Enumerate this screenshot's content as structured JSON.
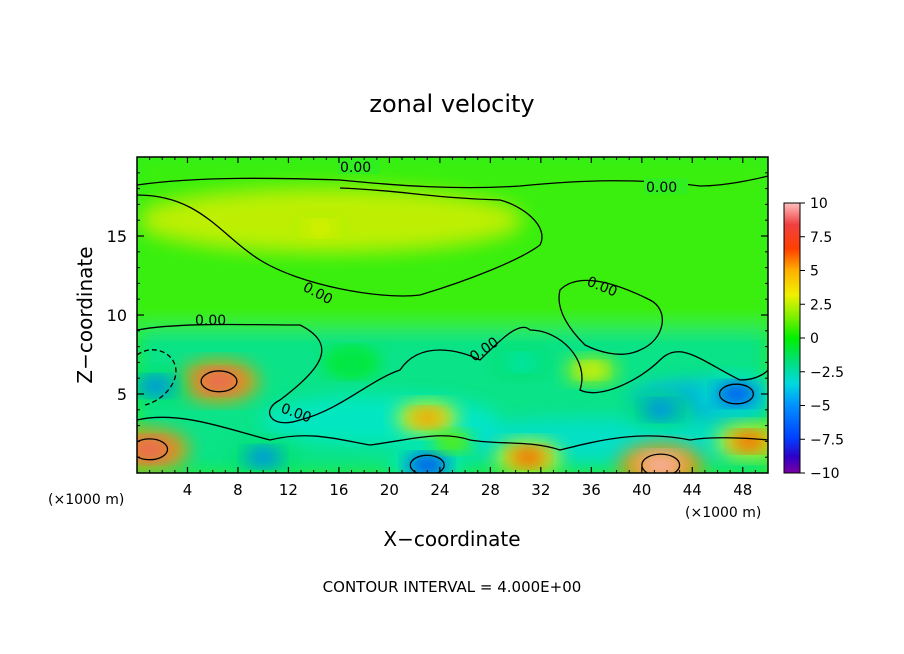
{
  "chart_data": {
    "type": "heatmap",
    "title": "zonal velocity",
    "xlabel": "X−coordinate",
    "ylabel": "Z−coordinate",
    "x_unit_left": "(×1000 m)",
    "x_unit_right": "(×1000 m)",
    "xlim": [
      0,
      50
    ],
    "ylim": [
      0,
      20
    ],
    "x_ticks": [
      4,
      8,
      12,
      16,
      20,
      24,
      28,
      32,
      36,
      40,
      44,
      48
    ],
    "y_ticks": [
      5,
      10,
      15
    ],
    "colorbar": {
      "range": [
        -10,
        10
      ],
      "ticks": [
        "10",
        "7.5",
        "5",
        "2.5",
        "0",
        "−2.5",
        "−5",
        "−7.5",
        "−10"
      ],
      "colors": [
        "#7a00a0",
        "#2e00c8",
        "#0040ff",
        "#0080ff",
        "#00c0ff",
        "#00e8c0",
        "#00e070",
        "#00f000",
        "#60f000",
        "#b0f000",
        "#f0f000",
        "#ffc800",
        "#ff9000",
        "#ff5000",
        "#ff2000",
        "#f06060",
        "#ffb0b0"
      ]
    },
    "contour_labels": [
      "0.00",
      "0.00",
      "0.00",
      "0.00",
      "0.00",
      "0.00"
    ],
    "footer": "CONTOUR INTERVAL = 4.000E+00",
    "features": [
      {
        "x": 1,
        "z": 1.5,
        "value": 9
      },
      {
        "x": 6.5,
        "z": 5.8,
        "value": 9
      },
      {
        "x": 1.5,
        "z": 5.5,
        "value": -6
      },
      {
        "x": 10,
        "z": 1,
        "value": -6
      },
      {
        "x": 23,
        "z": 0.5,
        "value": -8
      },
      {
        "x": 41.5,
        "z": 0.5,
        "value": 10
      },
      {
        "x": 31,
        "z": 1,
        "value": 6
      },
      {
        "x": 47.5,
        "z": 5,
        "value": -8
      },
      {
        "x": 41.5,
        "z": 4,
        "value": -6
      },
      {
        "x": 23,
        "z": 3.5,
        "value": 5
      },
      {
        "x": 14.5,
        "z": 15.5,
        "value": 3
      },
      {
        "x": 36,
        "z": 6.5,
        "value": 3
      },
      {
        "x": 48.5,
        "z": 2,
        "value": 6
      },
      {
        "x": 30.5,
        "z": 7,
        "value": -4
      },
      {
        "x": 25,
        "z": 2,
        "value": 0.5
      },
      {
        "x": 17,
        "z": 7,
        "value": -3
      }
    ]
  }
}
